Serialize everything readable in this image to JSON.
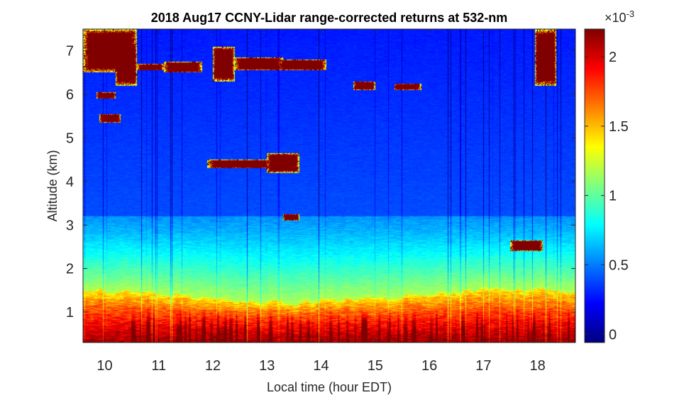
{
  "chart_data": {
    "type": "heatmap",
    "title": "2018 Aug17 CCNY-Lidar range-corrected returns at 532-nm",
    "xlabel": "Local time (hour EDT)",
    "ylabel": "Altitude (km)",
    "xlim": [
      9.6,
      18.7
    ],
    "ylim": [
      0.3,
      7.5
    ],
    "x_ticks": [
      10,
      11,
      12,
      13,
      14,
      15,
      16,
      17,
      18
    ],
    "y_ticks": [
      1,
      2,
      3,
      4,
      5,
      6,
      7
    ],
    "colorbar": {
      "colormap": "jet",
      "clim": [
        -6e-05,
        0.0022
      ],
      "tick_values": [
        0,
        0.5,
        1,
        1.5,
        2
      ],
      "tick_labels": [
        "0",
        "0.5",
        "1",
        "1.5",
        "2"
      ],
      "multiplier_label": "×10",
      "multiplier_exponent": "-3"
    },
    "features": {
      "boundary_layer_top_km": [
        {
          "x": 9.6,
          "y": 1.5
        },
        {
          "x": 10.5,
          "y": 1.45
        },
        {
          "x": 11.0,
          "y": 1.45
        },
        {
          "x": 11.7,
          "y": 1.3
        },
        {
          "x": 12.5,
          "y": 1.25
        },
        {
          "x": 13.5,
          "y": 1.2
        },
        {
          "x": 14.0,
          "y": 1.25
        },
        {
          "x": 15.0,
          "y": 1.3
        },
        {
          "x": 16.0,
          "y": 1.4
        },
        {
          "x": 17.0,
          "y": 1.55
        },
        {
          "x": 18.0,
          "y": 1.5
        },
        {
          "x": 18.7,
          "y": 1.45
        }
      ],
      "aerosol_layer_top_km": 3.2,
      "clouds": [
        {
          "x": [
            9.6,
            10.6
          ],
          "y": [
            6.5,
            7.5
          ]
        },
        {
          "x": [
            10.2,
            10.6
          ],
          "y": [
            6.2,
            7.2
          ]
        },
        {
          "x": [
            10.6,
            11.1
          ],
          "y": [
            6.55,
            6.7
          ]
        },
        {
          "x": [
            11.1,
            11.8
          ],
          "y": [
            6.5,
            6.75
          ]
        },
        {
          "x": [
            12.0,
            12.4
          ],
          "y": [
            6.3,
            7.1
          ]
        },
        {
          "x": [
            12.4,
            13.3
          ],
          "y": [
            6.55,
            6.85
          ]
        },
        {
          "x": [
            13.2,
            14.1
          ],
          "y": [
            6.55,
            6.8
          ]
        },
        {
          "x": [
            14.6,
            15.0
          ],
          "y": [
            6.1,
            6.3
          ]
        },
        {
          "x": [
            15.35,
            15.85
          ],
          "y": [
            6.1,
            6.25
          ]
        },
        {
          "x": [
            9.85,
            10.2
          ],
          "y": [
            5.9,
            6.05
          ]
        },
        {
          "x": [
            9.9,
            10.3
          ],
          "y": [
            5.35,
            5.55
          ]
        },
        {
          "x": [
            11.9,
            13.1
          ],
          "y": [
            4.3,
            4.5
          ]
        },
        {
          "x": [
            13.0,
            13.6
          ],
          "y": [
            4.2,
            4.65
          ]
        },
        {
          "x": [
            13.3,
            13.6
          ],
          "y": [
            3.1,
            3.25
          ]
        },
        {
          "x": [
            17.95,
            18.35
          ],
          "y": [
            6.2,
            7.5
          ]
        },
        {
          "x": [
            17.5,
            18.1
          ],
          "y": [
            2.4,
            2.65
          ]
        }
      ]
    }
  }
}
